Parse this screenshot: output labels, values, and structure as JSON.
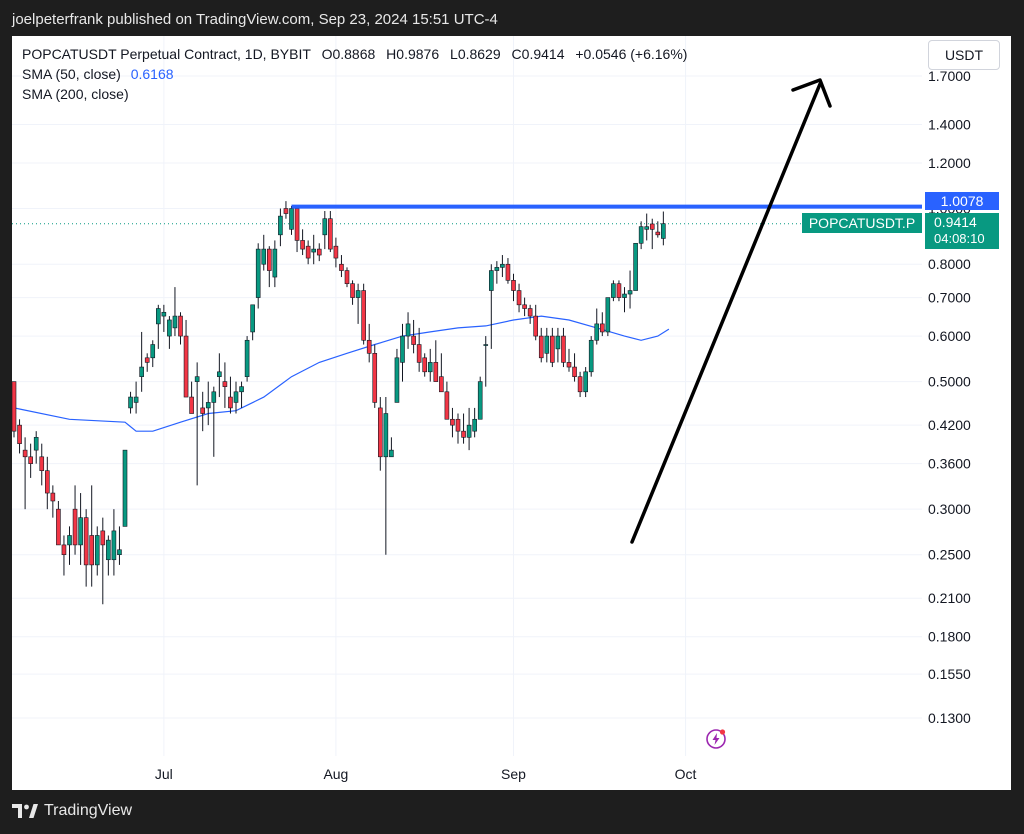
{
  "header": {
    "publisher_text": "joelpeterfrank published on TradingView.com, Sep 23, 2024 15:51 UTC-4"
  },
  "legend": {
    "symbol_line": "POPCATUSDT Perpetual Contract, 1D, BYBIT",
    "ohlc": {
      "o_label": "O",
      "o": "0.8868",
      "h_label": "H",
      "h": "0.9876",
      "l_label": "L",
      "l": "0.8629",
      "c_label": "C",
      "c": "0.9414",
      "change": "+0.0546 (+6.16%)"
    },
    "sma50_label": "SMA (50, close)",
    "sma50_value": "0.6168",
    "sma200_label": "SMA (200, close)"
  },
  "currency_button": "USDT",
  "resistance_tag": "1.0078",
  "symbol_tag": "POPCATUSDT.P",
  "last_price_tag": "0.9414",
  "countdown_tag": "04:08:10",
  "footer": {
    "brand": "TradingView"
  },
  "colors": {
    "up": "#089981",
    "down": "#f23645",
    "sma50": "#2962ff",
    "resistance": "#2962ff",
    "arrow": "#000000"
  },
  "chart_data": {
    "type": "candlestick",
    "y_scale": "log",
    "y_ticks": [
      "1.7000",
      "1.4000",
      "1.2000",
      "1.0000",
      "0.8000",
      "0.7000",
      "0.6000",
      "0.5000",
      "0.4200",
      "0.3600",
      "0.3000",
      "0.2500",
      "0.2100",
      "0.1800",
      "0.1550",
      "0.1300"
    ],
    "x_ticks": [
      "Jul",
      "Aug",
      "Sep",
      "Oct"
    ],
    "resistance_level": 1.0078,
    "candles": [
      [
        0.5,
        0.5,
        0.4,
        0.41
      ],
      [
        0.42,
        0.43,
        0.375,
        0.39
      ],
      [
        0.38,
        0.4,
        0.3,
        0.37
      ],
      [
        0.37,
        0.39,
        0.34,
        0.36
      ],
      [
        0.38,
        0.41,
        0.36,
        0.4
      ],
      [
        0.37,
        0.39,
        0.33,
        0.35
      ],
      [
        0.35,
        0.37,
        0.3,
        0.32
      ],
      [
        0.32,
        0.33,
        0.29,
        0.31
      ],
      [
        0.3,
        0.31,
        0.26,
        0.26
      ],
      [
        0.26,
        0.27,
        0.23,
        0.25
      ],
      [
        0.26,
        0.28,
        0.24,
        0.27
      ],
      [
        0.3,
        0.33,
        0.25,
        0.26
      ],
      [
        0.26,
        0.32,
        0.24,
        0.29
      ],
      [
        0.29,
        0.3,
        0.22,
        0.24
      ],
      [
        0.27,
        0.33,
        0.22,
        0.24
      ],
      [
        0.24,
        0.28,
        0.23,
        0.27
      ],
      [
        0.275,
        0.29,
        0.205,
        0.26
      ],
      [
        0.245,
        0.27,
        0.23,
        0.265
      ],
      [
        0.245,
        0.3,
        0.23,
        0.275
      ],
      [
        0.25,
        0.28,
        0.24,
        0.255
      ],
      [
        0.28,
        0.38,
        0.28,
        0.38
      ],
      [
        0.45,
        0.48,
        0.44,
        0.47
      ],
      [
        0.46,
        0.5,
        0.44,
        0.47
      ],
      [
        0.51,
        0.61,
        0.48,
        0.53
      ],
      [
        0.55,
        0.56,
        0.52,
        0.54
      ],
      [
        0.55,
        0.59,
        0.53,
        0.58
      ],
      [
        0.63,
        0.68,
        0.57,
        0.67
      ],
      [
        0.65,
        0.68,
        0.61,
        0.66
      ],
      [
        0.6,
        0.65,
        0.57,
        0.64
      ],
      [
        0.62,
        0.73,
        0.6,
        0.65
      ],
      [
        0.65,
        0.66,
        0.58,
        0.6
      ],
      [
        0.6,
        0.64,
        0.47,
        0.47
      ],
      [
        0.47,
        0.5,
        0.44,
        0.44
      ],
      [
        0.5,
        0.54,
        0.33,
        0.51
      ],
      [
        0.45,
        0.48,
        0.41,
        0.44
      ],
      [
        0.45,
        0.5,
        0.42,
        0.46
      ],
      [
        0.46,
        0.49,
        0.37,
        0.48
      ],
      [
        0.51,
        0.56,
        0.47,
        0.52
      ],
      [
        0.5,
        0.54,
        0.45,
        0.49
      ],
      [
        0.47,
        0.51,
        0.44,
        0.45
      ],
      [
        0.46,
        0.5,
        0.44,
        0.48
      ],
      [
        0.48,
        0.5,
        0.45,
        0.49
      ],
      [
        0.51,
        0.6,
        0.5,
        0.59
      ],
      [
        0.61,
        0.68,
        0.59,
        0.68
      ],
      [
        0.7,
        0.87,
        0.67,
        0.85
      ],
      [
        0.8,
        0.9,
        0.78,
        0.85
      ],
      [
        0.85,
        0.86,
        0.73,
        0.78
      ],
      [
        0.76,
        0.88,
        0.73,
        0.85
      ],
      [
        0.9,
        1.0,
        0.86,
        0.97
      ],
      [
        1.0,
        1.03,
        0.96,
        0.98
      ],
      [
        0.92,
        1.01,
        0.9,
        1.0
      ],
      [
        1.0,
        1.01,
        0.84,
        0.88
      ],
      [
        0.88,
        0.92,
        0.83,
        0.85
      ],
      [
        0.86,
        0.88,
        0.8,
        0.82
      ],
      [
        0.84,
        0.9,
        0.8,
        0.85
      ],
      [
        0.85,
        0.87,
        0.81,
        0.83
      ],
      [
        0.9,
        0.99,
        0.85,
        0.96
      ],
      [
        0.96,
        0.99,
        0.84,
        0.85
      ],
      [
        0.86,
        0.89,
        0.79,
        0.82
      ],
      [
        0.8,
        0.83,
        0.76,
        0.78
      ],
      [
        0.78,
        0.79,
        0.73,
        0.74
      ],
      [
        0.74,
        0.75,
        0.68,
        0.7
      ],
      [
        0.7,
        0.74,
        0.63,
        0.72
      ],
      [
        0.72,
        0.74,
        0.58,
        0.59
      ],
      [
        0.59,
        0.63,
        0.54,
        0.56
      ],
      [
        0.56,
        0.58,
        0.45,
        0.46
      ],
      [
        0.45,
        0.47,
        0.35,
        0.37
      ],
      [
        0.37,
        0.47,
        0.25,
        0.44
      ],
      [
        0.37,
        0.4,
        0.37,
        0.38
      ],
      [
        0.46,
        0.57,
        0.46,
        0.55
      ],
      [
        0.54,
        0.63,
        0.5,
        0.6
      ],
      [
        0.6,
        0.66,
        0.57,
        0.63
      ],
      [
        0.6,
        0.64,
        0.56,
        0.58
      ],
      [
        0.58,
        0.62,
        0.52,
        0.54
      ],
      [
        0.55,
        0.56,
        0.51,
        0.52
      ],
      [
        0.52,
        0.57,
        0.5,
        0.54
      ],
      [
        0.54,
        0.59,
        0.5,
        0.5
      ],
      [
        0.51,
        0.56,
        0.48,
        0.48
      ],
      [
        0.48,
        0.5,
        0.43,
        0.43
      ],
      [
        0.43,
        0.45,
        0.4,
        0.42
      ],
      [
        0.43,
        0.44,
        0.39,
        0.41
      ],
      [
        0.41,
        0.44,
        0.39,
        0.4
      ],
      [
        0.4,
        0.45,
        0.38,
        0.42
      ],
      [
        0.41,
        0.45,
        0.4,
        0.43
      ],
      [
        0.43,
        0.51,
        0.43,
        0.5
      ],
      [
        0.58,
        0.6,
        0.49,
        0.58
      ],
      [
        0.72,
        0.8,
        0.57,
        0.78
      ],
      [
        0.78,
        0.81,
        0.74,
        0.79
      ],
      [
        0.79,
        0.83,
        0.76,
        0.8
      ],
      [
        0.8,
        0.82,
        0.74,
        0.75
      ],
      [
        0.75,
        0.77,
        0.69,
        0.72
      ],
      [
        0.72,
        0.74,
        0.66,
        0.68
      ],
      [
        0.68,
        0.7,
        0.65,
        0.67
      ],
      [
        0.67,
        0.68,
        0.63,
        0.65
      ],
      [
        0.65,
        0.68,
        0.59,
        0.6
      ],
      [
        0.6,
        0.62,
        0.54,
        0.55
      ],
      [
        0.56,
        0.62,
        0.54,
        0.6
      ],
      [
        0.6,
        0.62,
        0.53,
        0.54
      ],
      [
        0.57,
        0.62,
        0.54,
        0.6
      ],
      [
        0.6,
        0.62,
        0.53,
        0.54
      ],
      [
        0.54,
        0.57,
        0.52,
        0.53
      ],
      [
        0.53,
        0.56,
        0.5,
        0.51
      ],
      [
        0.51,
        0.52,
        0.47,
        0.48
      ],
      [
        0.48,
        0.53,
        0.47,
        0.52
      ],
      [
        0.52,
        0.6,
        0.51,
        0.59
      ],
      [
        0.59,
        0.67,
        0.58,
        0.63
      ],
      [
        0.63,
        0.66,
        0.6,
        0.61
      ],
      [
        0.61,
        0.7,
        0.6,
        0.7
      ],
      [
        0.7,
        0.75,
        0.69,
        0.74
      ],
      [
        0.74,
        0.75,
        0.69,
        0.7
      ],
      [
        0.7,
        0.73,
        0.66,
        0.71
      ],
      [
        0.71,
        0.78,
        0.67,
        0.72
      ],
      [
        0.72,
        0.87,
        0.72,
        0.87
      ],
      [
        0.87,
        0.95,
        0.85,
        0.93
      ],
      [
        0.92,
        0.98,
        0.88,
        0.93
      ],
      [
        0.94,
        0.96,
        0.85,
        0.92
      ],
      [
        0.91,
        0.95,
        0.89,
        0.9
      ],
      [
        0.887,
        0.988,
        0.863,
        0.941
      ]
    ],
    "sma50": [
      [
        0,
        0.45
      ],
      [
        10,
        0.43
      ],
      [
        20,
        0.425
      ],
      [
        22,
        0.41
      ],
      [
        25,
        0.41
      ],
      [
        30,
        0.425
      ],
      [
        35,
        0.44
      ],
      [
        40,
        0.445
      ],
      [
        45,
        0.47
      ],
      [
        50,
        0.51
      ],
      [
        55,
        0.54
      ],
      [
        60,
        0.56
      ],
      [
        65,
        0.58
      ],
      [
        70,
        0.6
      ],
      [
        75,
        0.61
      ],
      [
        80,
        0.62
      ],
      [
        85,
        0.625
      ],
      [
        90,
        0.64
      ],
      [
        95,
        0.65
      ],
      [
        100,
        0.64
      ],
      [
        105,
        0.62
      ],
      [
        110,
        0.6
      ],
      [
        113,
        0.59
      ],
      [
        116,
        0.6
      ],
      [
        118,
        0.617
      ]
    ]
  }
}
